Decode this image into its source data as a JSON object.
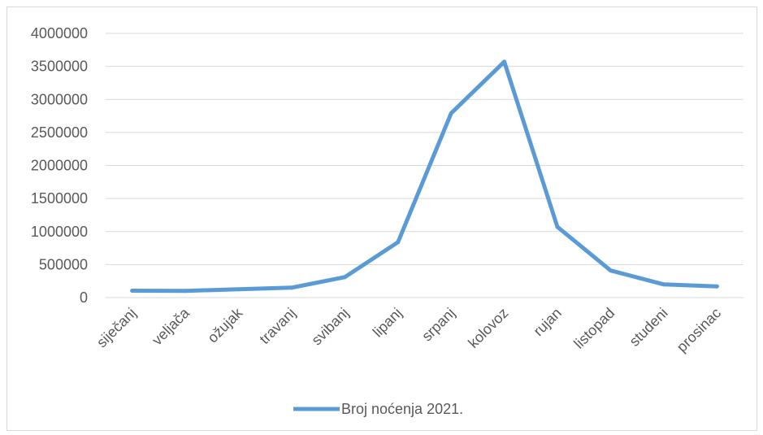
{
  "chart_data": {
    "type": "line",
    "title": "",
    "xlabel": "",
    "ylabel": "",
    "categories": [
      "siječanj",
      "veljača",
      "ožujak",
      "travanj",
      "svibanj",
      "lipanj",
      "srpanj",
      "kolovoz",
      "rujan",
      "listopad",
      "studeni",
      "prosinac"
    ],
    "series": [
      {
        "name": "Broj noćenja 2021.",
        "color": "#5B9BD5",
        "values": [
          105000,
          102000,
          125000,
          150000,
          310000,
          840000,
          2790000,
          3570000,
          1070000,
          410000,
          200000,
          170000
        ]
      }
    ],
    "ylim": [
      0,
      4000000
    ],
    "yticks": [
      "0",
      "500000",
      "1000000",
      "1500000",
      "2000000",
      "2500000",
      "3000000",
      "3500000",
      "4000000"
    ],
    "grid": true,
    "legend": "bottom"
  }
}
